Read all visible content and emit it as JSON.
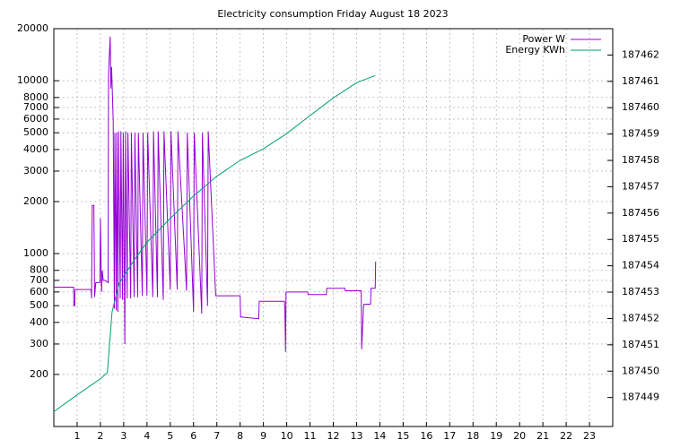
{
  "chart_data": {
    "type": "line",
    "title": "Electricity consumption Friday August 18 2023",
    "xlim": [
      0,
      24
    ],
    "xticks": [
      1,
      2,
      3,
      4,
      5,
      6,
      7,
      8,
      9,
      10,
      11,
      12,
      13,
      14,
      15,
      16,
      17,
      18,
      19,
      20,
      21,
      22,
      23
    ],
    "ylim": [
      100,
      20000
    ],
    "yscale": "log",
    "yticks": [
      200,
      300,
      400,
      500,
      600,
      700,
      800,
      1000,
      2000,
      3000,
      4000,
      5000,
      6000,
      7000,
      8000,
      10000,
      20000
    ],
    "y2lim": [
      187447.9,
      187463.0
    ],
    "y2ticks": [
      187449,
      187450,
      187451,
      187452,
      187453,
      187454,
      187455,
      187456,
      187457,
      187458,
      187459,
      187460,
      187461,
      187462
    ],
    "grid": true,
    "legend": "top-right",
    "series": [
      {
        "name": "Power W",
        "color": "#9400d3",
        "x": [
          0,
          0.85,
          0.86,
          0.9,
          0.91,
          1.6,
          1.62,
          1.65,
          1.72,
          1.75,
          1.8,
          1.98,
          2.0,
          2.05,
          2.08,
          2.12,
          2.2,
          2.33,
          2.35,
          2.42,
          2.45,
          2.48,
          2.55,
          2.6,
          2.62,
          2.68,
          2.7,
          2.75,
          2.78,
          2.85,
          2.88,
          2.95,
          2.98,
          3.05,
          3.08,
          3.15,
          3.18,
          3.3,
          3.33,
          3.45,
          3.48,
          3.6,
          3.63,
          3.8,
          3.83,
          4.0,
          4.03,
          4.25,
          4.28,
          4.45,
          4.48,
          4.7,
          4.73,
          5.0,
          5.03,
          5.3,
          5.33,
          5.7,
          5.73,
          6.0,
          6.03,
          6.35,
          6.38,
          6.6,
          6.63,
          6.95,
          6.98,
          8.0,
          8.02,
          8.8,
          8.82,
          9.9,
          9.92,
          9.95,
          9.97,
          10.9,
          10.92,
          11.7,
          11.72,
          12.5,
          12.52,
          13.2,
          13.22,
          13.3,
          13.32,
          13.6,
          13.62,
          13.8,
          13.82
        ],
        "values": [
          640,
          640,
          500,
          500,
          620,
          620,
          550,
          1900,
          1900,
          560,
          680,
          680,
          1600,
          600,
          800,
          700,
          700,
          680,
          11000,
          18000,
          9000,
          12000,
          5800,
          480,
          5000,
          470,
          5000,
          460,
          5100,
          550,
          5100,
          540,
          5000,
          300,
          5100,
          550,
          5000,
          550,
          5000,
          560,
          5000,
          560,
          5000,
          570,
          5000,
          570,
          5000,
          560,
          5100,
          560,
          5100,
          540,
          5100,
          620,
          5100,
          620,
          5100,
          610,
          5000,
          460,
          5000,
          450,
          5000,
          500,
          5100,
          570,
          570,
          570,
          430,
          420,
          530,
          530,
          480,
          270,
          600,
          600,
          580,
          580,
          630,
          630,
          610,
          610,
          280,
          500,
          510,
          510,
          630,
          630,
          900
        ]
      },
      {
        "name": "Energy KWh",
        "color": "#009e73",
        "axis": "y2",
        "x": [
          0,
          1,
          2,
          2.3,
          2.5,
          2.8,
          3.5,
          4,
          5,
          6,
          7,
          8,
          9,
          10,
          11,
          12,
          13,
          13.8
        ],
        "values": [
          187448.46,
          187449.1,
          187449.71,
          187449.95,
          187452.25,
          187453.33,
          187454.28,
          187454.89,
          187455.8,
          187456.65,
          187457.4,
          187458.0,
          187458.44,
          187459.02,
          187459.7,
          187460.37,
          187460.95,
          187461.22
        ]
      }
    ]
  }
}
